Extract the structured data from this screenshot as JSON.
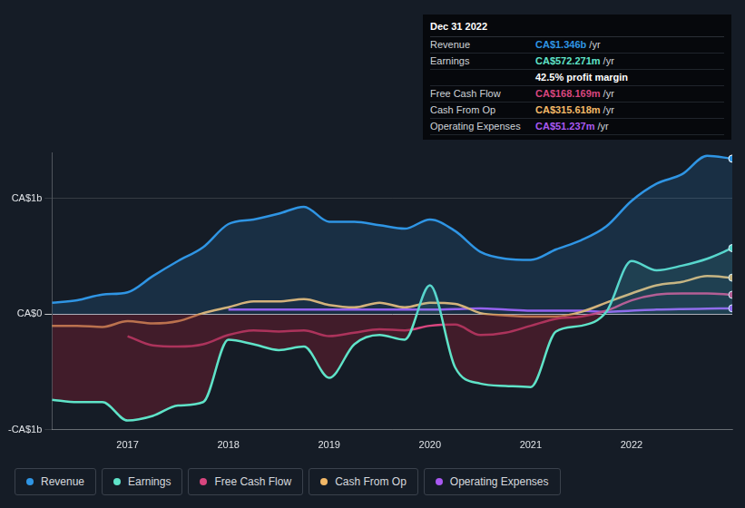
{
  "chart_data": {
    "type": "line",
    "x": [
      2016.25,
      2016.5,
      2016.75,
      2017.0,
      2017.25,
      2017.5,
      2017.75,
      2018.0,
      2018.25,
      2018.5,
      2018.75,
      2019.0,
      2019.25,
      2019.5,
      2019.75,
      2020.0,
      2020.25,
      2020.5,
      2020.75,
      2021.0,
      2021.25,
      2021.5,
      2021.75,
      2022.0,
      2022.25,
      2022.5,
      2022.75,
      2023.0
    ],
    "series": [
      {
        "name": "Revenue",
        "color": "#2f95e4",
        "values": [
          0.1,
          0.12,
          0.17,
          0.19,
          0.33,
          0.46,
          0.58,
          0.78,
          0.82,
          0.87,
          0.93,
          0.8,
          0.8,
          0.77,
          0.74,
          0.82,
          0.72,
          0.54,
          0.48,
          0.47,
          0.56,
          0.64,
          0.76,
          0.98,
          1.13,
          1.21,
          1.37,
          1.346
        ]
      },
      {
        "name": "Earnings",
        "color": "#5fe3c8",
        "values": [
          -0.74,
          -0.76,
          -0.76,
          -0.92,
          -0.88,
          -0.79,
          -0.76,
          -0.22,
          -0.26,
          -0.31,
          -0.28,
          -0.55,
          -0.26,
          -0.18,
          -0.22,
          0.25,
          -0.46,
          -0.6,
          -0.62,
          -0.63,
          -0.15,
          -0.1,
          0.02,
          0.46,
          0.38,
          0.42,
          0.48,
          0.572
        ]
      },
      {
        "name": "Free Cash Flow",
        "color": "#d8467f",
        "values": [
          null,
          null,
          null,
          -0.19,
          -0.27,
          -0.28,
          -0.26,
          -0.18,
          -0.14,
          -0.15,
          -0.14,
          -0.19,
          -0.16,
          -0.13,
          -0.14,
          -0.1,
          -0.09,
          -0.18,
          -0.16,
          -0.1,
          -0.04,
          -0.02,
          0.03,
          0.12,
          0.17,
          0.18,
          0.18,
          0.168
        ]
      },
      {
        "name": "Cash From Op",
        "color": "#f2b867",
        "values": [
          -0.1,
          -0.1,
          -0.11,
          -0.06,
          -0.08,
          -0.06,
          0.01,
          0.06,
          0.11,
          0.11,
          0.13,
          0.08,
          0.06,
          0.1,
          0.06,
          0.1,
          0.09,
          0.01,
          -0.01,
          -0.02,
          -0.02,
          0.02,
          0.1,
          0.18,
          0.25,
          0.28,
          0.33,
          0.316
        ]
      },
      {
        "name": "Operating Expenses",
        "color": "#a959f2",
        "values": [
          null,
          null,
          null,
          null,
          null,
          null,
          null,
          0.04,
          0.04,
          0.04,
          0.04,
          0.04,
          0.04,
          0.04,
          0.04,
          0.04,
          0.045,
          0.05,
          0.04,
          0.03,
          0.03,
          0.03,
          0.02,
          0.03,
          0.04,
          0.045,
          0.048,
          0.051
        ]
      }
    ],
    "xlim": [
      2016.25,
      2023.0
    ],
    "xticks": [
      2017,
      2018,
      2019,
      2020,
      2021,
      2022
    ],
    "ylim": [
      -1,
      1.4
    ],
    "yticks": [
      {
        "value": -1,
        "label": "-CA$1b"
      },
      {
        "value": 0,
        "label": "CA$0"
      },
      {
        "value": 1,
        "label": "CA$1b"
      }
    ],
    "grid": true,
    "legend": "bottom",
    "info_box": {
      "title": "Dec 31 2022",
      "rows": [
        {
          "label": "Revenue",
          "value": "CA$1.346b",
          "unit": "/yr"
        },
        {
          "label": "Earnings",
          "value": "CA$572.271m",
          "unit": "/yr"
        },
        {
          "value": "42.5% profit margin"
        },
        {
          "label": "Free Cash Flow",
          "value": "CA$168.169m",
          "unit": "/yr"
        },
        {
          "label": "Cash From Op",
          "value": "CA$315.618m",
          "unit": "/yr"
        },
        {
          "label": "Operating Expenses",
          "value": "CA$51.237m",
          "unit": "/yr"
        }
      ]
    }
  }
}
